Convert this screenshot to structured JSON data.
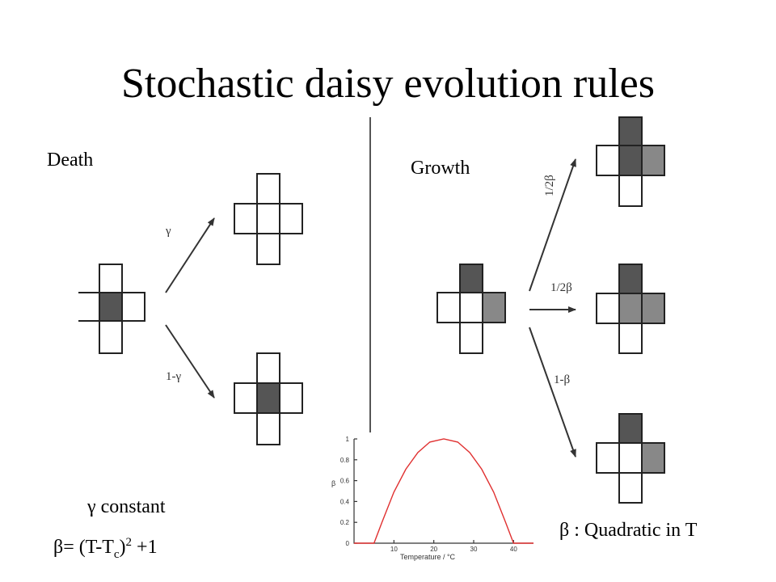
{
  "title": "Stochastic daisy evolution rules",
  "death": {
    "label": "Death",
    "rates": [
      "γ",
      "1-γ"
    ]
  },
  "growth": {
    "label": "Growth",
    "rates": [
      "1/2β",
      "1/2β",
      "1-β"
    ]
  },
  "notes": {
    "gamma_constant": "γ constant",
    "beta_formula_prefix": "β= (T-T",
    "beta_formula_sub": "c",
    "beta_formula_mid": ")",
    "beta_formula_sup": "2",
    "beta_formula_suffix": " +1",
    "beta_quadratic": "β : Quadratic in T"
  },
  "colors": {
    "dark_cell": "#555555",
    "mid_cell": "#888888",
    "curve": "#e03030"
  },
  "chart_data": {
    "type": "line",
    "xlabel": "Temperature / °C",
    "ylabel": "β",
    "x_ticks": [
      10,
      20,
      30,
      40
    ],
    "y_ticks": [
      0,
      0.2,
      0.4,
      0.6,
      0.8,
      1
    ],
    "xlim": [
      0,
      45
    ],
    "ylim": [
      0,
      1
    ],
    "series": [
      {
        "x": [
          0,
          5,
          7,
          10,
          13,
          16,
          19,
          22.5,
          26,
          29,
          32,
          35,
          38,
          40,
          45
        ],
        "values": [
          0,
          0,
          0.2,
          0.49,
          0.71,
          0.87,
          0.97,
          1.0,
          0.97,
          0.87,
          0.71,
          0.49,
          0.2,
          0,
          0
        ]
      }
    ]
  }
}
